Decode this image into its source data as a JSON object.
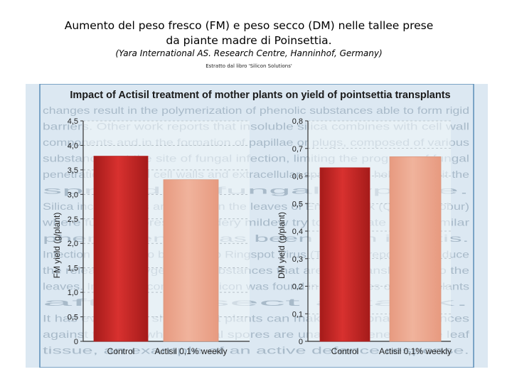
{
  "header": {
    "title_line1": "Aumento del peso fresco (FM) e peso secco (DM) nelle tallee prese",
    "title_line2": "da piante madre di Poinsettia.",
    "subtitle": "(Yara International AS. Research Centre, Hanninhof, Germany)",
    "note": "Estratto dal libro 'Silicon Solutions'"
  },
  "figure": {
    "title": "Impact of Actisil treatment of mother plants on yield of pointsettia transplants"
  },
  "colors": {
    "page_bg": "#dce8f2",
    "frame": "#5b8db8",
    "bg_text": "#7f95a8",
    "control": "#d8312f",
    "actisil": "#f0b39c"
  },
  "background_text": [
    "changes result in the polymerization of phenolic substances able to form rigid",
    "barriers. Other work reports that insoluble silica combines with cell wall",
    "components and in the formation of papillae or plugs, composed of various",
    "substances, at the site of fungal infection, limiting the progress of fungal",
    "penetration. Silified cell walls and extracellular spaces also help to inhibit the",
    "spread of fungal hyphae.",
    "Silica incrustations are found on the leaves of English Oak (Quercus robur)",
    "where fungal spores of powdery mildew try to penetrate and a similar",
    "phenomenon has been seen in Vitis.",
    "Infection of Tobacco by Tobacco Ringspot Virus (TRSV) is reported to induce",
    "the release of oxygenated substances that are then translocated to the",
    "leaves. Increased content of silicon was found in the leaves of Citrus plants",
    "after insect attack.",
    "It has even been shown that plants can make additional substances",
    "against fungi by which fungal spores are unable to penetrate the leaf",
    "tissue, an example of an active defence response."
  ],
  "chart_data": [
    {
      "type": "bar",
      "categories": [
        "Control",
        "Actisil 0,1% weekly"
      ],
      "values": [
        3.78,
        3.3
      ],
      "ylabel": "FM yield (g/plant)",
      "ylim": [
        0,
        4.5
      ],
      "yticks": [
        "0",
        "0,5",
        "1,0",
        "1,5",
        "2,0",
        "2,5",
        "3,0",
        "3,5",
        "4,0",
        "4,5"
      ],
      "grid": true
    },
    {
      "type": "bar",
      "categories": [
        "Control",
        "Actisil 0,1% weekly"
      ],
      "values": [
        0.63,
        0.67
      ],
      "ylabel": "DM yield (g/plant)",
      "ylim": [
        0,
        0.8
      ],
      "yticks": [
        "0",
        "0,1",
        "0,2",
        "0,3",
        "0,4",
        "0,5",
        "0,6",
        "0,7",
        "0,8"
      ],
      "grid": true
    }
  ]
}
